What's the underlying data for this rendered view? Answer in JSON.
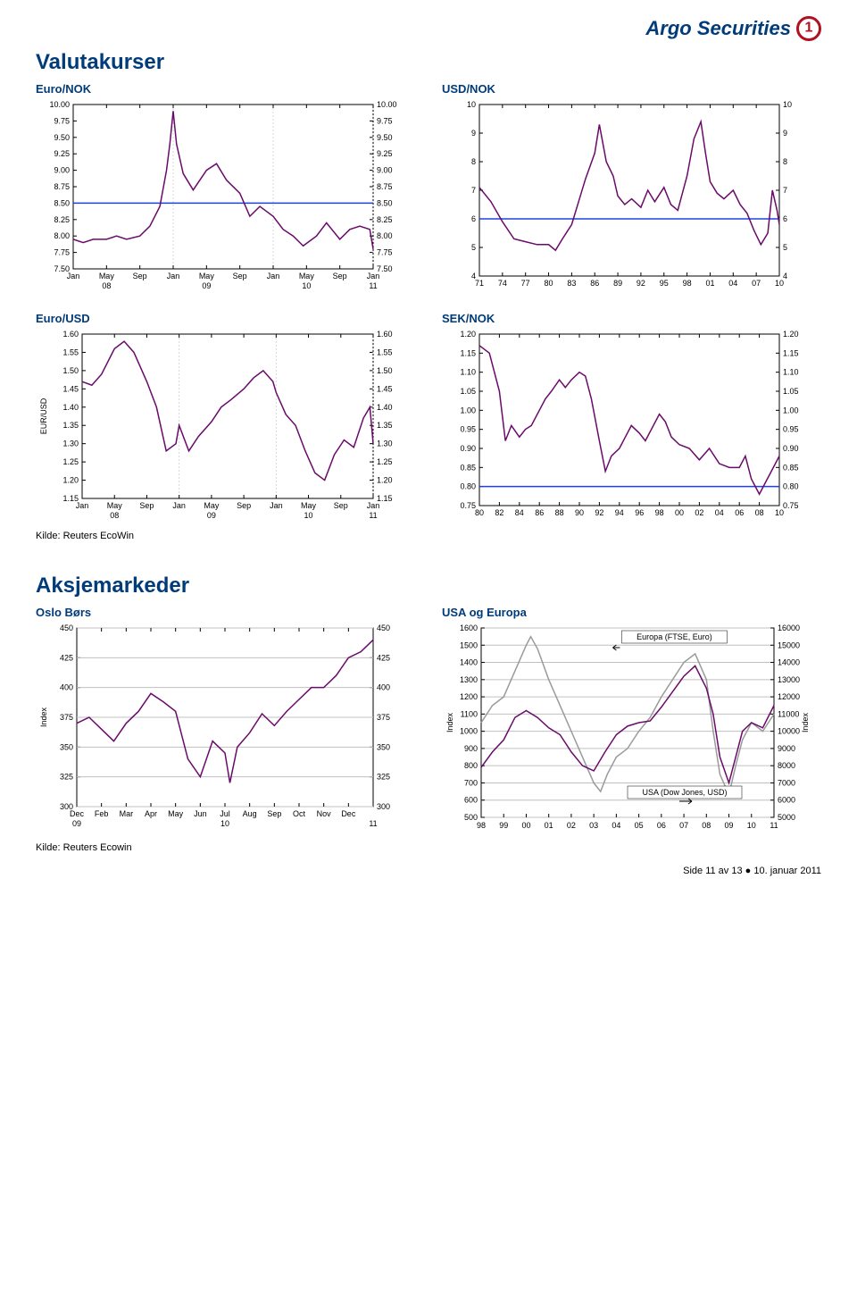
{
  "brand": {
    "name": "Argo Securities"
  },
  "sections": {
    "fx_title": "Valutakurser",
    "eq_title": "Aksjemarkeder"
  },
  "sources": {
    "ecowin_caps": "Kilde: Reuters EcoWin",
    "ecowin_lower": "Kilde: Reuters Ecowin"
  },
  "footer": {
    "page": "Side 11 av 13",
    "date": "10. januar 2011"
  },
  "eur_nok": {
    "title": "Euro/NOK",
    "type": "line",
    "line_color": "#6a0a6a",
    "ref_line_color": "#2040e0",
    "background_color": "#ffffff",
    "grid_color": "#d8d8d8",
    "ylim": [
      7.5,
      10.0
    ],
    "ytick_step": 0.25,
    "yticks_labels": [
      "7.50",
      "7.75",
      "8.00",
      "8.25",
      "8.50",
      "8.75",
      "9.00",
      "9.25",
      "9.50",
      "9.75",
      "10.00"
    ],
    "x_labels_top": [
      "Jan",
      "May",
      "Sep",
      "Jan",
      "May",
      "Sep",
      "Jan",
      "May",
      "Sep",
      "Jan"
    ],
    "x_labels_bottom": [
      "08",
      "09",
      "10",
      "11"
    ],
    "x_grid_idx": [
      3,
      6,
      9
    ],
    "ref_y": 8.5,
    "data": [
      [
        0,
        7.95
      ],
      [
        0.3,
        7.9
      ],
      [
        0.6,
        7.95
      ],
      [
        1.0,
        7.95
      ],
      [
        1.3,
        8.0
      ],
      [
        1.6,
        7.95
      ],
      [
        2.0,
        8.0
      ],
      [
        2.3,
        8.15
      ],
      [
        2.6,
        8.45
      ],
      [
        2.8,
        9.0
      ],
      [
        2.9,
        9.4
      ],
      [
        3.0,
        9.9
      ],
      [
        3.1,
        9.4
      ],
      [
        3.3,
        8.95
      ],
      [
        3.6,
        8.7
      ],
      [
        4.0,
        9.0
      ],
      [
        4.3,
        9.1
      ],
      [
        4.6,
        8.85
      ],
      [
        5.0,
        8.65
      ],
      [
        5.3,
        8.3
      ],
      [
        5.6,
        8.45
      ],
      [
        6.0,
        8.3
      ],
      [
        6.3,
        8.1
      ],
      [
        6.6,
        8.0
      ],
      [
        6.9,
        7.85
      ],
      [
        7.3,
        8.0
      ],
      [
        7.6,
        8.2
      ],
      [
        8.0,
        7.95
      ],
      [
        8.3,
        8.1
      ],
      [
        8.6,
        8.15
      ],
      [
        8.9,
        8.1
      ],
      [
        9.0,
        7.8
      ]
    ]
  },
  "usd_nok": {
    "title": "USD/NOK",
    "type": "line",
    "line_color": "#6a0a6a",
    "ref_line_color": "#2040e0",
    "background_color": "#ffffff",
    "ylim": [
      4,
      10
    ],
    "ytick_step": 1,
    "yticks_labels": [
      "4",
      "5",
      "6",
      "7",
      "8",
      "9",
      "10"
    ],
    "x_labels": [
      "71",
      "74",
      "77",
      "80",
      "83",
      "86",
      "89",
      "92",
      "95",
      "98",
      "01",
      "04",
      "07",
      "10"
    ],
    "ref_y": 6.0,
    "data": [
      [
        0,
        7.1
      ],
      [
        0.5,
        6.6
      ],
      [
        1.0,
        5.9
      ],
      [
        1.5,
        5.3
      ],
      [
        2.0,
        5.2
      ],
      [
        2.5,
        5.1
      ],
      [
        3.0,
        5.1
      ],
      [
        3.3,
        4.9
      ],
      [
        3.6,
        5.3
      ],
      [
        4.0,
        5.8
      ],
      [
        4.3,
        6.6
      ],
      [
        4.6,
        7.4
      ],
      [
        5.0,
        8.3
      ],
      [
        5.2,
        9.3
      ],
      [
        5.5,
        8.0
      ],
      [
        5.8,
        7.5
      ],
      [
        6.0,
        6.8
      ],
      [
        6.3,
        6.5
      ],
      [
        6.6,
        6.7
      ],
      [
        7.0,
        6.4
      ],
      [
        7.3,
        7.0
      ],
      [
        7.6,
        6.6
      ],
      [
        8.0,
        7.1
      ],
      [
        8.3,
        6.5
      ],
      [
        8.6,
        6.3
      ],
      [
        9.0,
        7.5
      ],
      [
        9.3,
        8.8
      ],
      [
        9.6,
        9.4
      ],
      [
        9.8,
        8.3
      ],
      [
        10.0,
        7.3
      ],
      [
        10.3,
        6.9
      ],
      [
        10.6,
        6.7
      ],
      [
        11.0,
        7.0
      ],
      [
        11.3,
        6.5
      ],
      [
        11.6,
        6.2
      ],
      [
        11.9,
        5.6
      ],
      [
        12.2,
        5.1
      ],
      [
        12.5,
        5.5
      ],
      [
        12.7,
        7.0
      ],
      [
        12.9,
        6.3
      ],
      [
        13.0,
        5.8
      ]
    ]
  },
  "eur_usd": {
    "title": "Euro/USD",
    "type": "line",
    "line_color": "#6a0a6a",
    "background_color": "#ffffff",
    "grid_color": "#d8d8d8",
    "ylabel": "EUR/USD",
    "ylim": [
      1.15,
      1.6
    ],
    "ytick_step": 0.05,
    "yticks_labels": [
      "1.15",
      "1.20",
      "1.25",
      "1.30",
      "1.35",
      "1.40",
      "1.45",
      "1.50",
      "1.55",
      "1.60"
    ],
    "x_labels_top": [
      "Jan",
      "May",
      "Sep",
      "Jan",
      "May",
      "Sep",
      "Jan",
      "May",
      "Sep",
      "Jan"
    ],
    "x_labels_bottom": [
      "08",
      "09",
      "10",
      "11"
    ],
    "x_grid_idx": [
      3,
      6,
      9
    ],
    "data": [
      [
        0,
        1.47
      ],
      [
        0.3,
        1.46
      ],
      [
        0.6,
        1.49
      ],
      [
        1.0,
        1.56
      ],
      [
        1.3,
        1.58
      ],
      [
        1.6,
        1.55
      ],
      [
        2.0,
        1.47
      ],
      [
        2.3,
        1.4
      ],
      [
        2.6,
        1.28
      ],
      [
        2.9,
        1.3
      ],
      [
        3.0,
        1.35
      ],
      [
        3.3,
        1.28
      ],
      [
        3.6,
        1.32
      ],
      [
        4.0,
        1.36
      ],
      [
        4.3,
        1.4
      ],
      [
        4.6,
        1.42
      ],
      [
        5.0,
        1.45
      ],
      [
        5.3,
        1.48
      ],
      [
        5.6,
        1.5
      ],
      [
        5.9,
        1.47
      ],
      [
        6.0,
        1.44
      ],
      [
        6.3,
        1.38
      ],
      [
        6.6,
        1.35
      ],
      [
        6.9,
        1.28
      ],
      [
        7.2,
        1.22
      ],
      [
        7.5,
        1.2
      ],
      [
        7.8,
        1.27
      ],
      [
        8.1,
        1.31
      ],
      [
        8.4,
        1.29
      ],
      [
        8.7,
        1.37
      ],
      [
        8.9,
        1.4
      ],
      [
        9.0,
        1.3
      ]
    ]
  },
  "sek_nok": {
    "title": "SEK/NOK",
    "type": "line",
    "line_color": "#6a0a6a",
    "ref_line_color": "#2040e0",
    "background_color": "#ffffff",
    "ylim": [
      0.75,
      1.2
    ],
    "ytick_step": 0.05,
    "yticks_labels": [
      "0.75",
      "0.80",
      "0.85",
      "0.90",
      "0.95",
      "1.00",
      "1.05",
      "1.10",
      "1.15",
      "1.20"
    ],
    "x_labels": [
      "80",
      "82",
      "84",
      "86",
      "88",
      "90",
      "92",
      "94",
      "96",
      "98",
      "00",
      "02",
      "04",
      "06",
      "08",
      "10"
    ],
    "ref_y": 0.8,
    "data": [
      [
        0,
        1.17
      ],
      [
        0.5,
        1.15
      ],
      [
        1.0,
        1.05
      ],
      [
        1.3,
        0.92
      ],
      [
        1.6,
        0.96
      ],
      [
        2.0,
        0.93
      ],
      [
        2.3,
        0.95
      ],
      [
        2.6,
        0.96
      ],
      [
        3.0,
        1.0
      ],
      [
        3.3,
        1.03
      ],
      [
        3.6,
        1.05
      ],
      [
        4.0,
        1.08
      ],
      [
        4.3,
        1.06
      ],
      [
        4.6,
        1.08
      ],
      [
        5.0,
        1.1
      ],
      [
        5.3,
        1.09
      ],
      [
        5.6,
        1.03
      ],
      [
        6.0,
        0.92
      ],
      [
        6.3,
        0.84
      ],
      [
        6.6,
        0.88
      ],
      [
        7.0,
        0.9
      ],
      [
        7.3,
        0.93
      ],
      [
        7.6,
        0.96
      ],
      [
        8.0,
        0.94
      ],
      [
        8.3,
        0.92
      ],
      [
        8.6,
        0.95
      ],
      [
        9.0,
        0.99
      ],
      [
        9.3,
        0.97
      ],
      [
        9.6,
        0.93
      ],
      [
        10.0,
        0.91
      ],
      [
        10.5,
        0.9
      ],
      [
        11.0,
        0.87
      ],
      [
        11.5,
        0.9
      ],
      [
        12.0,
        0.86
      ],
      [
        12.5,
        0.85
      ],
      [
        13.0,
        0.85
      ],
      [
        13.3,
        0.88
      ],
      [
        13.6,
        0.82
      ],
      [
        14.0,
        0.78
      ],
      [
        14.3,
        0.81
      ],
      [
        14.6,
        0.84
      ],
      [
        15.0,
        0.88
      ]
    ]
  },
  "oslo": {
    "title": "Oslo Børs",
    "type": "line",
    "line_color": "#6a0a6a",
    "ylabel": "Index",
    "grid_color": "#c0c0c0",
    "ylim": [
      300,
      450
    ],
    "ytick_step": 25,
    "yticks_labels": [
      "300",
      "325",
      "350",
      "375",
      "400",
      "425",
      "450"
    ],
    "x_labels_top": [
      "Dec",
      "Feb",
      "Mar",
      "Apr",
      "May",
      "Jun",
      "Jul",
      "Aug",
      "Sep",
      "Oct",
      "Nov",
      "Dec"
    ],
    "x_labels_bottom": [
      "09",
      "10",
      "11"
    ],
    "x_bottom_pos": [
      0,
      6,
      12
    ],
    "data": [
      [
        0,
        370
      ],
      [
        0.5,
        375
      ],
      [
        1.0,
        365
      ],
      [
        1.5,
        355
      ],
      [
        2.0,
        370
      ],
      [
        2.5,
        380
      ],
      [
        3.0,
        395
      ],
      [
        3.5,
        388
      ],
      [
        4.0,
        380
      ],
      [
        4.5,
        340
      ],
      [
        5.0,
        325
      ],
      [
        5.5,
        355
      ],
      [
        6.0,
        345
      ],
      [
        6.2,
        320
      ],
      [
        6.5,
        350
      ],
      [
        7.0,
        362
      ],
      [
        7.5,
        378
      ],
      [
        8.0,
        368
      ],
      [
        8.5,
        380
      ],
      [
        9.0,
        390
      ],
      [
        9.5,
        400
      ],
      [
        10.0,
        400
      ],
      [
        10.5,
        410
      ],
      [
        11.0,
        425
      ],
      [
        11.5,
        430
      ],
      [
        12.0,
        440
      ]
    ]
  },
  "usa_eu": {
    "title": "USA og Europa",
    "type": "line-dual",
    "ftse_color": "#9a9a9a",
    "dj_color": "#6a0a6a",
    "grid_color": "#c0c0c0",
    "y_left_lim": [
      500,
      1600
    ],
    "y_left_step": 100,
    "y_left_labels": [
      "500",
      "600",
      "700",
      "800",
      "900",
      "1000",
      "1100",
      "1200",
      "1300",
      "1400",
      "1500",
      "1600"
    ],
    "y_right_lim": [
      5000,
      16000
    ],
    "y_right_step": 1000,
    "y_right_labels": [
      "5000",
      "6000",
      "7000",
      "8000",
      "9000",
      "10000",
      "11000",
      "12000",
      "13000",
      "14000",
      "15000",
      "16000"
    ],
    "ylabel_left": "Index",
    "ylabel_right": "Index",
    "legend_ftse": "Europa (FTSE, Euro)",
    "legend_dj": "USA (Dow Jones, USD)",
    "x_labels": [
      "98",
      "99",
      "00",
      "01",
      "02",
      "03",
      "04",
      "05",
      "06",
      "07",
      "08",
      "09",
      "10",
      "11"
    ],
    "ftse": [
      [
        0,
        1050
      ],
      [
        0.5,
        1150
      ],
      [
        1.0,
        1200
      ],
      [
        1.5,
        1350
      ],
      [
        2.0,
        1500
      ],
      [
        2.2,
        1550
      ],
      [
        2.5,
        1480
      ],
      [
        3.0,
        1300
      ],
      [
        3.5,
        1150
      ],
      [
        4.0,
        1000
      ],
      [
        4.5,
        850
      ],
      [
        5.0,
        700
      ],
      [
        5.3,
        650
      ],
      [
        5.6,
        750
      ],
      [
        6.0,
        850
      ],
      [
        6.5,
        900
      ],
      [
        7.0,
        1000
      ],
      [
        7.5,
        1080
      ],
      [
        8.0,
        1200
      ],
      [
        8.5,
        1300
      ],
      [
        9.0,
        1400
      ],
      [
        9.5,
        1450
      ],
      [
        10.0,
        1300
      ],
      [
        10.3,
        1000
      ],
      [
        10.6,
        750
      ],
      [
        11.0,
        630
      ],
      [
        11.3,
        800
      ],
      [
        11.6,
        950
      ],
      [
        12.0,
        1050
      ],
      [
        12.5,
        1000
      ],
      [
        13.0,
        1100
      ]
    ],
    "dj": [
      [
        0,
        7900
      ],
      [
        0.5,
        8800
      ],
      [
        1.0,
        9500
      ],
      [
        1.5,
        10800
      ],
      [
        2.0,
        11200
      ],
      [
        2.5,
        10800
      ],
      [
        3.0,
        10200
      ],
      [
        3.5,
        9800
      ],
      [
        4.0,
        8800
      ],
      [
        4.5,
        8000
      ],
      [
        5.0,
        7700
      ],
      [
        5.5,
        8800
      ],
      [
        6.0,
        9800
      ],
      [
        6.5,
        10300
      ],
      [
        7.0,
        10500
      ],
      [
        7.5,
        10600
      ],
      [
        8.0,
        11400
      ],
      [
        8.5,
        12300
      ],
      [
        9.0,
        13200
      ],
      [
        9.5,
        13800
      ],
      [
        10.0,
        12500
      ],
      [
        10.3,
        11000
      ],
      [
        10.6,
        8500
      ],
      [
        11.0,
        7000
      ],
      [
        11.3,
        8500
      ],
      [
        11.6,
        10000
      ],
      [
        12.0,
        10500
      ],
      [
        12.5,
        10200
      ],
      [
        13.0,
        11500
      ]
    ]
  }
}
